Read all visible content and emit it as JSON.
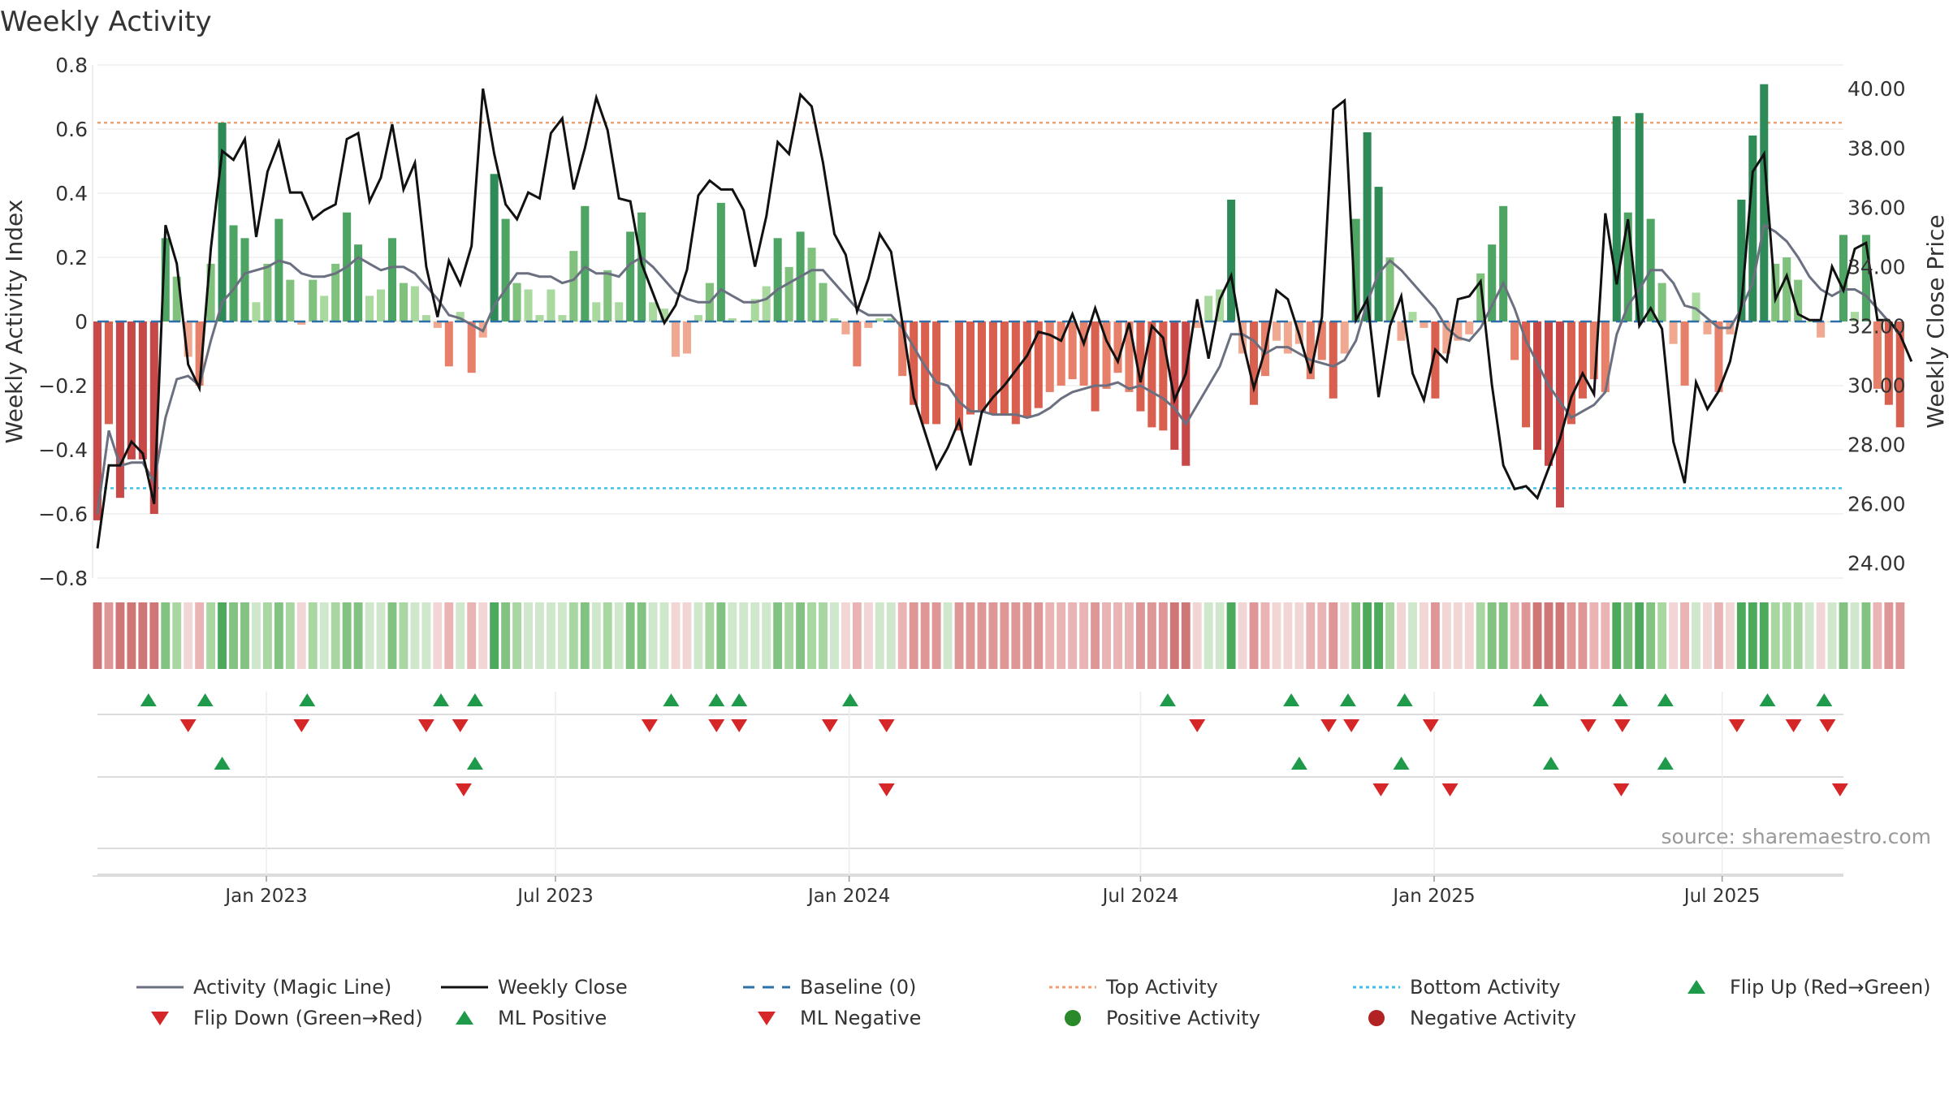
{
  "chart_data": {
    "type": "bar",
    "title": "Weekly Activity",
    "ylabel_left": "Weekly Activity Index",
    "ylabel_right": "Weekly Close Price",
    "source": "source: sharemaestro.com",
    "left_axis": {
      "range": [
        -0.8,
        0.8
      ],
      "ticks": [
        0.8,
        0.6,
        0.4,
        0.2,
        0,
        -0.2,
        -0.4,
        -0.6,
        -0.8
      ],
      "tick_labels": [
        "0.8",
        "0.6",
        "0.4",
        "0.2",
        "0",
        "−0.2",
        "−0.4",
        "−0.6",
        "−0.8"
      ]
    },
    "right_axis": {
      "range": [
        23.5,
        40.8
      ],
      "ticks": [
        40,
        38,
        36,
        34,
        32,
        30,
        28,
        26,
        24
      ],
      "tick_labels": [
        "40.00",
        "38.00",
        "36.00",
        "34.00",
        "32.00",
        "30.00",
        "28.00",
        "26.00",
        "24.00"
      ]
    },
    "x_axis": {
      "start_week": 0,
      "end_week": 154,
      "ticks": [
        14.9,
        40.4,
        66.3,
        92.0,
        117.9,
        143.3
      ],
      "tick_labels": [
        "Jan 2023",
        "Jul 2023",
        "Jan 2024",
        "Jul 2024",
        "Jan 2025",
        "Jul 2025"
      ]
    },
    "top_activity": 0.62,
    "bottom_activity": -0.52,
    "activity": [
      -0.62,
      -0.32,
      -0.55,
      -0.43,
      -0.43,
      -0.6,
      0.26,
      0.14,
      -0.11,
      -0.2,
      0.18,
      0.62,
      0.3,
      0.26,
      0.06,
      0.18,
      0.32,
      0.13,
      -0.01,
      0.13,
      0.08,
      0.18,
      0.34,
      0.24,
      0.08,
      0.1,
      0.26,
      0.12,
      0.11,
      0.02,
      -0.02,
      -0.14,
      0.03,
      -0.16,
      -0.05,
      0.46,
      0.32,
      0.12,
      0.1,
      0.02,
      0.1,
      0.02,
      0.22,
      0.36,
      0.06,
      0.16,
      0.06,
      0.28,
      0.34,
      0.06,
      0.04,
      -0.11,
      -0.1,
      0.02,
      0.12,
      0.37,
      0.01,
      0.0,
      0.07,
      0.11,
      0.26,
      0.17,
      0.28,
      0.23,
      0.12,
      0.01,
      -0.04,
      -0.14,
      -0.02,
      0.01,
      0.01,
      -0.17,
      -0.26,
      -0.32,
      -0.32,
      0.0,
      -0.34,
      -0.29,
      -0.28,
      -0.29,
      -0.29,
      -0.32,
      -0.3,
      -0.27,
      -0.22,
      -0.2,
      -0.18,
      -0.2,
      -0.28,
      -0.21,
      -0.16,
      -0.22,
      -0.28,
      -0.33,
      -0.34,
      -0.4,
      -0.45,
      -0.02,
      0.08,
      0.1,
      0.38,
      -0.1,
      -0.26,
      -0.17,
      -0.06,
      -0.1,
      -0.07,
      -0.18,
      -0.12,
      -0.24,
      -0.1,
      0.32,
      0.59,
      0.42,
      0.2,
      -0.06,
      0.03,
      -0.02,
      -0.24,
      -0.1,
      -0.06,
      -0.04,
      0.15,
      0.24,
      0.36,
      -0.12,
      -0.33,
      -0.4,
      -0.45,
      -0.58,
      -0.32,
      -0.24,
      -0.18,
      -0.22,
      0.64,
      0.34,
      0.65,
      0.32,
      0.12,
      -0.07,
      -0.2,
      0.09,
      -0.04,
      -0.22,
      -0.04,
      0.38,
      0.58,
      0.74,
      0.18,
      0.2,
      0.13,
      0.0,
      -0.05,
      0.0,
      0.27,
      0.03,
      0.27,
      -0.21,
      -0.26,
      -0.33
    ],
    "magic_line": [
      -0.6,
      -0.34,
      -0.45,
      -0.44,
      -0.44,
      -0.5,
      -0.3,
      -0.18,
      -0.17,
      -0.2,
      -0.06,
      0.06,
      0.1,
      0.15,
      0.16,
      0.17,
      0.19,
      0.18,
      0.15,
      0.14,
      0.14,
      0.15,
      0.17,
      0.2,
      0.18,
      0.16,
      0.17,
      0.17,
      0.15,
      0.11,
      0.07,
      0.02,
      0.01,
      -0.01,
      -0.03,
      0.05,
      0.1,
      0.15,
      0.15,
      0.14,
      0.14,
      0.12,
      0.13,
      0.17,
      0.15,
      0.15,
      0.14,
      0.18,
      0.2,
      0.17,
      0.13,
      0.09,
      0.07,
      0.06,
      0.06,
      0.1,
      0.08,
      0.06,
      0.06,
      0.07,
      0.1,
      0.12,
      0.14,
      0.16,
      0.16,
      0.12,
      0.08,
      0.04,
      0.02,
      0.02,
      0.02,
      -0.02,
      -0.08,
      -0.14,
      -0.19,
      -0.2,
      -0.25,
      -0.28,
      -0.28,
      -0.29,
      -0.29,
      -0.29,
      -0.3,
      -0.29,
      -0.27,
      -0.24,
      -0.22,
      -0.21,
      -0.2,
      -0.2,
      -0.19,
      -0.21,
      -0.2,
      -0.22,
      -0.24,
      -0.27,
      -0.32,
      -0.26,
      -0.2,
      -0.14,
      -0.04,
      -0.04,
      -0.06,
      -0.1,
      -0.08,
      -0.08,
      -0.1,
      -0.12,
      -0.13,
      -0.14,
      -0.12,
      -0.06,
      0.06,
      0.15,
      0.19,
      0.16,
      0.12,
      0.08,
      0.04,
      -0.02,
      -0.05,
      -0.06,
      -0.02,
      0.05,
      0.12,
      0.04,
      -0.06,
      -0.13,
      -0.2,
      -0.25,
      -0.3,
      -0.28,
      -0.26,
      -0.22,
      -0.04,
      0.05,
      0.1,
      0.16,
      0.16,
      0.12,
      0.05,
      0.04,
      0.01,
      -0.02,
      -0.02,
      0.04,
      0.12,
      0.3,
      0.28,
      0.25,
      0.2,
      0.14,
      0.1,
      0.08,
      0.1,
      0.1,
      0.08,
      0.04,
      0.0,
      -0.04
    ],
    "weekly_close": [
      24.5,
      27.3,
      27.3,
      28.1,
      27.7,
      26.0,
      35.4,
      34.1,
      30.7,
      29.9,
      34.6,
      37.9,
      37.6,
      38.3,
      35.0,
      37.2,
      38.2,
      36.5,
      36.5,
      35.6,
      35.9,
      36.1,
      38.3,
      38.5,
      36.2,
      37.0,
      38.8,
      36.6,
      37.5,
      34.0,
      32.3,
      34.2,
      33.4,
      34.7,
      40.0,
      37.8,
      36.1,
      35.6,
      36.5,
      36.3,
      38.5,
      39.0,
      36.6,
      38.0,
      39.7,
      38.6,
      36.3,
      36.2,
      34.1,
      33.1,
      32.1,
      32.7,
      33.9,
      36.4,
      36.9,
      36.6,
      36.6,
      35.9,
      34.0,
      35.7,
      38.2,
      37.8,
      39.8,
      39.4,
      37.5,
      35.1,
      34.4,
      32.5,
      33.6,
      35.1,
      34.5,
      32.1,
      29.6,
      28.4,
      27.2,
      27.9,
      28.8,
      27.3,
      29.1,
      29.6,
      30.0,
      30.5,
      31.0,
      31.8,
      31.7,
      31.5,
      32.4,
      31.4,
      32.6,
      31.5,
      30.8,
      32.1,
      30.1,
      32.0,
      31.6,
      29.5,
      30.4,
      32.9,
      30.9,
      32.9,
      33.7,
      31.5,
      29.9,
      31.2,
      33.2,
      32.9,
      31.7,
      30.4,
      32.3,
      39.3,
      39.6,
      32.2,
      32.9,
      29.6,
      32.0,
      33.0,
      30.4,
      29.5,
      31.2,
      30.8,
      32.9,
      33.0,
      33.5,
      30.0,
      27.3,
      26.5,
      26.6,
      26.2,
      27.2,
      28.2,
      29.6,
      30.4,
      29.7,
      35.8,
      33.4,
      35.6,
      32.0,
      32.6,
      31.9,
      28.1,
      26.7,
      30.1,
      29.2,
      29.8,
      30.8,
      32.7,
      37.2,
      37.8,
      32.9,
      33.7,
      32.4,
      32.2,
      32.2,
      34.0,
      33.2,
      34.6,
      34.8,
      32.2,
      32.2,
      31.7,
      30.8
    ],
    "bar_shades": [
      [
        "#f0a890",
        "#e6806a",
        "#d9604f",
        "#c84848"
      ],
      [
        "#a9d99f",
        "#7fc17d",
        "#4ea563",
        "#2e8b57"
      ]
    ],
    "strip_shades": [
      [
        "#f2d6d6",
        "#eab4b4",
        "#de9696",
        "#cf7676"
      ],
      [
        "#cfe8cc",
        "#a8d7a2",
        "#83c381",
        "#4daa5c"
      ]
    ],
    "markers": {
      "flip_up": [
        4.5,
        9.5,
        18.5,
        30.3,
        33.3,
        50.6,
        54.6,
        56.6,
        66.4,
        94.4,
        105.3,
        110.3,
        115.3,
        127.3,
        134.3,
        138.3,
        147.3,
        152.3
      ],
      "flip_down": [
        8.0,
        18.0,
        29.0,
        32.0,
        48.7,
        54.6,
        56.6,
        64.6,
        69.6,
        97.0,
        108.6,
        110.6,
        117.6,
        131.5,
        134.5,
        144.6,
        149.6,
        152.6
      ],
      "ml_positive": [
        11.0,
        33.3,
        106.0,
        115.0,
        128.2,
        138.3
      ],
      "ml_negative": [
        32.3,
        69.6,
        113.2,
        119.3,
        134.4,
        153.7
      ]
    },
    "legend": [
      {
        "label": "Activity (Magic Line)",
        "symbol": "line",
        "color": "#6b7080"
      },
      {
        "label": "Weekly Close",
        "symbol": "line",
        "color": "#111111"
      },
      {
        "label": "Baseline (0)",
        "symbol": "dash",
        "color": "#2e6fa8"
      },
      {
        "label": "Top Activity",
        "symbol": "dot-line",
        "color": "#f0a070"
      },
      {
        "label": "Bottom Activity",
        "symbol": "dot-line",
        "color": "#40c0e0"
      },
      {
        "label": "Flip Up (Red→Green)",
        "symbol": "tri-up",
        "color": "#1f9a4a"
      },
      {
        "label": "Flip Down (Green→Red)",
        "symbol": "tri-down",
        "color": "#d62728"
      },
      {
        "label": "ML Positive",
        "symbol": "tri-up",
        "color": "#1f9a4a"
      },
      {
        "label": "ML Negative",
        "symbol": "tri-down",
        "color": "#d62728"
      },
      {
        "label": "Positive Activity",
        "symbol": "circle",
        "color": "#2a8a2a"
      },
      {
        "label": "Negative Activity",
        "symbol": "circle",
        "color": "#b22222"
      }
    ]
  }
}
